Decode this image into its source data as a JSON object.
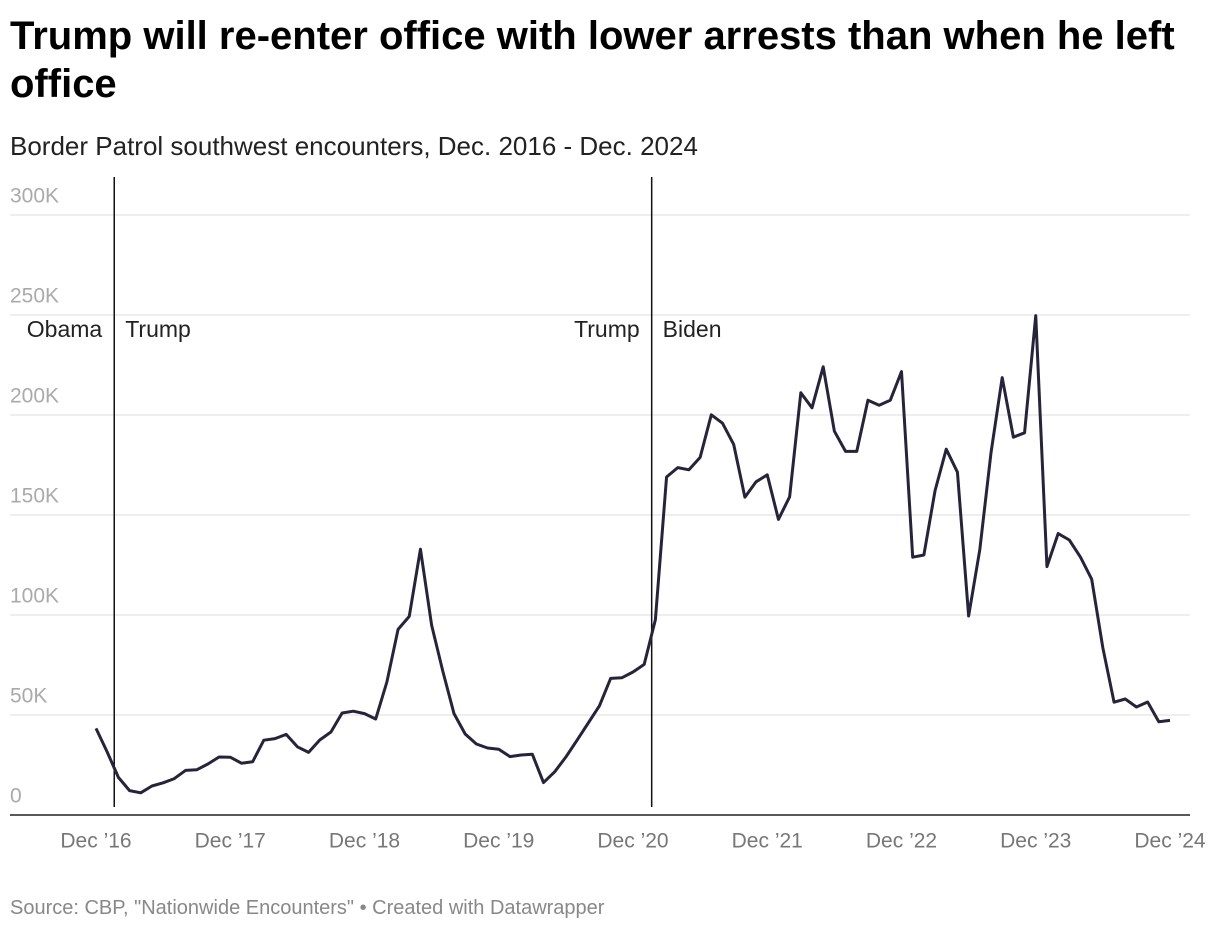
{
  "chart_data": {
    "type": "line",
    "title": "Trump will re-enter office with lower arrests than when he left office",
    "subtitle": "Border Patrol southwest encounters, Dec. 2016 - Dec. 2024",
    "source": "Source: CBP, \"Nationwide Encounters\" • Created with Datawrapper",
    "annotations": [
      {
        "left": "Obama",
        "right": "Trump"
      },
      {
        "left": "Trump",
        "right": "Biden"
      }
    ],
    "categories": [
      "Dec ’16",
      null,
      null,
      null,
      null,
      null,
      null,
      null,
      null,
      null,
      null,
      null,
      "Dec ’17",
      null,
      null,
      null,
      null,
      null,
      null,
      null,
      null,
      null,
      null,
      null,
      "Dec ’18",
      null,
      null,
      null,
      null,
      null,
      null,
      null,
      null,
      null,
      null,
      null,
      "Dec ’19",
      null,
      null,
      null,
      null,
      null,
      null,
      null,
      null,
      null,
      null,
      null,
      "Dec ’20",
      null,
      null,
      null,
      null,
      null,
      null,
      null,
      null,
      null,
      null,
      null,
      "Dec ’21",
      null,
      null,
      null,
      null,
      null,
      null,
      null,
      null,
      null,
      null,
      null,
      "Dec ’22",
      null,
      null,
      null,
      null,
      null,
      null,
      null,
      null,
      null,
      null,
      null,
      "Dec ’23",
      null,
      null,
      null,
      null,
      null,
      null,
      null,
      null,
      null,
      null,
      null,
      "Dec ’24"
    ],
    "values": [
      43300,
      31500,
      18800,
      12200,
      11100,
      14500,
      16100,
      18200,
      22300,
      22600,
      25500,
      29000,
      28900,
      25900,
      26600,
      37400,
      38200,
      40300,
      34100,
      31300,
      37500,
      41500,
      51000,
      51900,
      50700,
      48000,
      66500,
      92800,
      99300,
      132900,
      94900,
      71900,
      50700,
      40500,
      35500,
      33500,
      32900,
      29200,
      30000,
      30400,
      16200,
      21600,
      29000,
      37400,
      46000,
      54600,
      68300,
      68600,
      71500,
      75300,
      97600,
      169000,
      173700,
      172600,
      178800,
      200100,
      195900,
      185300,
      158900,
      166600,
      170100,
      147800,
      159100,
      211100,
      203600,
      224100,
      191900,
      181800,
      181800,
      207400,
      204900,
      207400,
      221700,
      128900,
      130000,
      162200,
      182900,
      171400,
      99500,
      132700,
      181100,
      218700,
      188900,
      191100,
      249700,
      124200,
      140700,
      137500,
      128900,
      117900,
      83500,
      56400,
      58000,
      54000,
      56500,
      46600,
      47300
    ],
    "color": "#26243a",
    "ylim": [
      0,
      300000
    ],
    "yticks": [
      0,
      {
        "value": 50000,
        "label": "50K"
      },
      {
        "value": 100000,
        "label": "100K"
      },
      {
        "value": 150000,
        "label": "150K"
      },
      {
        "value": 200000,
        "label": "200K"
      },
      {
        "value": 250000,
        "label": "250K"
      },
      {
        "value": 300000,
        "label": "300K"
      }
    ],
    "grid": true
  }
}
